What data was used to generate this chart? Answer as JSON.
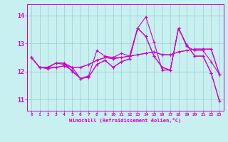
{
  "background_color": "#c8f0f0",
  "grid_color": "#99cccc",
  "line_color": "#cc00cc",
  "marker": "+",
  "xlabel": "Windchill (Refroidissement éolien,°C)",
  "yticks": [
    11,
    12,
    13,
    14
  ],
  "xticks": [
    0,
    1,
    2,
    3,
    4,
    5,
    6,
    7,
    8,
    9,
    10,
    11,
    12,
    13,
    14,
    15,
    16,
    17,
    18,
    19,
    20,
    21,
    22,
    23
  ],
  "ylim": [
    10.6,
    14.4
  ],
  "xlim": [
    -0.5,
    23.5
  ],
  "lines": [
    [
      12.5,
      12.15,
      12.15,
      12.3,
      12.3,
      12.0,
      11.75,
      11.85,
      12.75,
      12.55,
      12.5,
      12.65,
      12.55,
      13.55,
      13.95,
      13.05,
      12.05,
      12.05,
      13.55,
      12.9,
      12.75,
      12.75,
      12.35,
      11.9
    ],
    [
      12.5,
      12.15,
      12.15,
      12.3,
      12.3,
      12.15,
      12.15,
      12.25,
      12.4,
      12.5,
      12.5,
      12.5,
      12.55,
      12.6,
      12.65,
      12.7,
      12.6,
      12.6,
      12.7,
      12.75,
      12.8,
      12.8,
      12.8,
      11.9
    ],
    [
      12.5,
      12.15,
      12.15,
      12.3,
      12.25,
      12.15,
      12.15,
      12.25,
      12.4,
      12.5,
      12.45,
      12.5,
      12.55,
      12.6,
      12.65,
      12.7,
      12.6,
      12.6,
      12.7,
      12.75,
      12.8,
      12.8,
      12.8,
      11.9
    ],
    [
      12.5,
      12.15,
      12.15,
      12.15,
      12.2,
      12.15,
      11.75,
      11.8,
      12.25,
      12.4,
      12.15,
      12.35,
      12.45,
      13.55,
      13.25,
      12.55,
      12.15,
      12.05,
      13.55,
      12.95,
      12.55,
      12.55,
      11.95,
      10.95
    ],
    [
      12.5,
      12.15,
      12.1,
      12.15,
      12.2,
      12.05,
      11.75,
      11.8,
      12.25,
      12.4,
      12.15,
      12.35,
      12.45,
      13.55,
      13.25,
      12.55,
      12.15,
      12.05,
      13.55,
      12.95,
      12.55,
      12.55,
      11.95,
      10.95
    ]
  ]
}
